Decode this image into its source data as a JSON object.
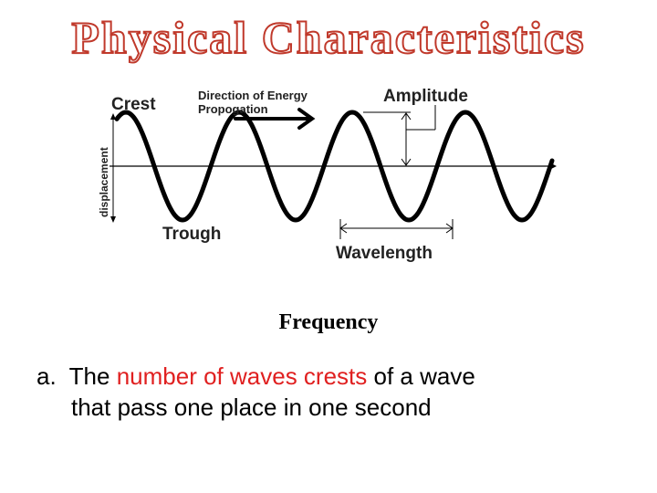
{
  "slide": {
    "title": "Physical Characteristics",
    "heading": "Frequency",
    "body": {
      "marker": "a.",
      "text_before": "The",
      "highlight": "number of waves crests",
      "text_after_1": "of a wave",
      "line2": "that pass one place in one second",
      "highlight_color": "#e02020"
    }
  },
  "diagram": {
    "labels": {
      "crest": "Crest",
      "trough": "Trough",
      "direction_line1": "Direction of Energy",
      "direction_line2": "Propogation",
      "amplitude": "Amplitude",
      "wavelength": "Wavelength",
      "displacement": "displacement"
    },
    "wave_color": "#000000"
  }
}
